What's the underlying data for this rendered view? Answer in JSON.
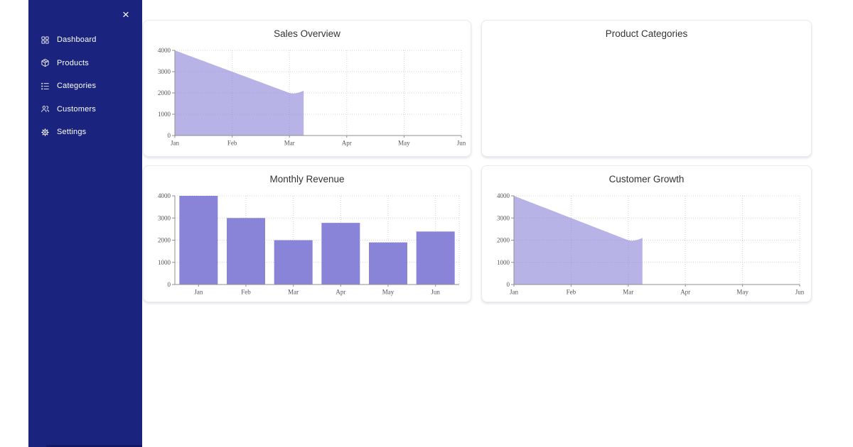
{
  "sidebar": {
    "bg_color": "#1a237e",
    "close_label": "×",
    "items": [
      {
        "label": "Dashboard",
        "icon": "dashboard-grid-icon"
      },
      {
        "label": "Products",
        "icon": "package-icon"
      },
      {
        "label": "Categories",
        "icon": "list-icon"
      },
      {
        "label": "Customers",
        "icon": "people-icon"
      },
      {
        "label": "Settings",
        "icon": "gear-icon"
      }
    ]
  },
  "colors": {
    "sidebar_bg": "#1a237e",
    "bar_fill": "#8a84d8",
    "area_fill": "#8a84d8",
    "area_fill_opacity": 0.62,
    "grid": "#d4d4d4",
    "axis": "#8f8f8f",
    "tick_text": "#555555",
    "title_text": "#333333"
  },
  "chart_data": [
    {
      "type": "area",
      "title": "Sales Overview",
      "categories": [
        "Jan",
        "Feb",
        "Mar",
        "Apr",
        "May",
        "Jun"
      ],
      "values": [
        4000,
        3000,
        2000
      ],
      "ylim": [
        0,
        4000
      ],
      "yticks": [
        0,
        1000,
        2000,
        3000,
        4000
      ],
      "grid": true,
      "legend": "none"
    },
    {
      "type": "pie",
      "title": "Product Categories",
      "categories": [],
      "values": [],
      "empty": true,
      "legend": "none"
    },
    {
      "type": "bar",
      "title": "Monthly Revenue",
      "categories": [
        "Jan",
        "Feb",
        "Mar",
        "Apr",
        "May",
        "Jun"
      ],
      "values": [
        4000,
        3000,
        2000,
        2780,
        1900,
        2390
      ],
      "ylim": [
        0,
        4000
      ],
      "yticks": [
        0,
        1000,
        2000,
        3000,
        4000
      ],
      "grid": true,
      "legend": "none"
    },
    {
      "type": "area",
      "title": "Customer Growth",
      "categories": [
        "Jan",
        "Feb",
        "Mar",
        "Apr",
        "May",
        "Jun"
      ],
      "values": [
        4000,
        3000,
        2000
      ],
      "ylim": [
        0,
        4000
      ],
      "yticks": [
        0,
        1000,
        2000,
        3000,
        4000
      ],
      "grid": true,
      "legend": "none"
    }
  ]
}
